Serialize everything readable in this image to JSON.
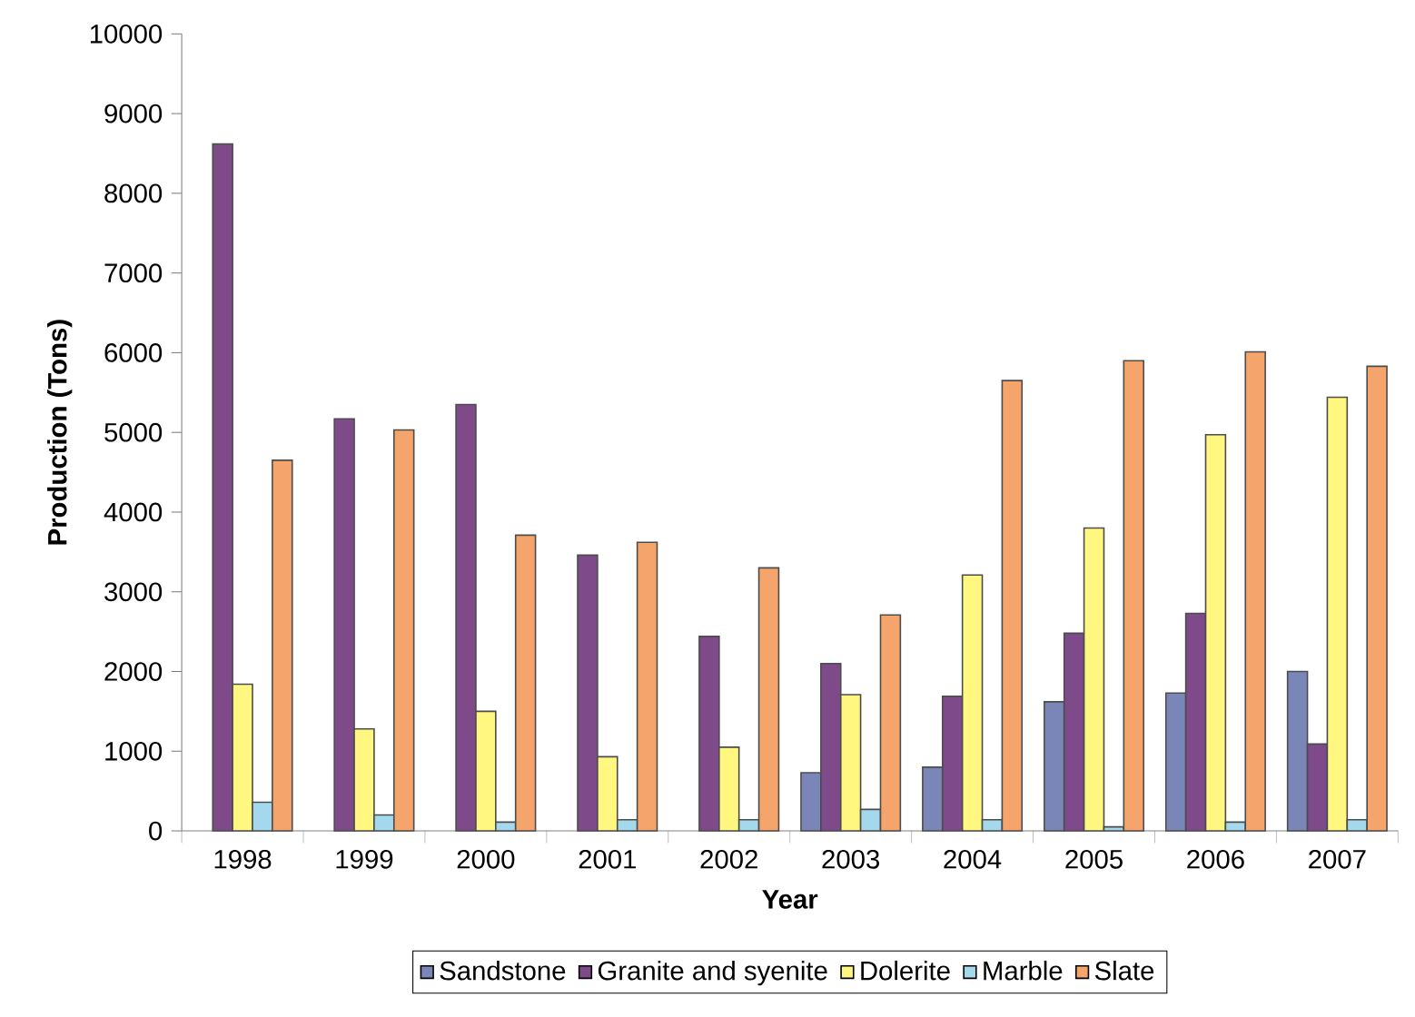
{
  "chart_data": {
    "type": "bar",
    "xlabel": "Year",
    "ylabel": "Production (Tons)",
    "categories": [
      "1998",
      "1999",
      "2000",
      "2001",
      "2002",
      "2003",
      "2004",
      "2005",
      "2006",
      "2007"
    ],
    "series": [
      {
        "name": "Sandstone",
        "color": "#7b86b8",
        "values": [
          null,
          null,
          null,
          null,
          null,
          730,
          800,
          1620,
          1730,
          2000
        ]
      },
      {
        "name": "Granite and syenite",
        "color": "#7f4a8a",
        "values": [
          8620,
          5170,
          5350,
          3460,
          2440,
          2100,
          1690,
          2480,
          2730,
          1090
        ]
      },
      {
        "name": "Dolerite",
        "color": "#fff780",
        "values": [
          1840,
          1280,
          1500,
          930,
          1050,
          1710,
          3210,
          3800,
          4970,
          5440
        ]
      },
      {
        "name": "Marble",
        "color": "#a4d8ec",
        "values": [
          360,
          200,
          110,
          140,
          140,
          270,
          140,
          50,
          110,
          140
        ]
      },
      {
        "name": "Slate",
        "color": "#f5a46b",
        "values": [
          4650,
          5030,
          3710,
          3620,
          3300,
          2710,
          5650,
          5900,
          6010,
          5830
        ]
      }
    ],
    "ylim": [
      0,
      10000
    ],
    "yticks": [
      0,
      1000,
      2000,
      3000,
      4000,
      5000,
      6000,
      7000,
      8000,
      9000,
      10000
    ],
    "grid": false,
    "legend": "bottom"
  }
}
